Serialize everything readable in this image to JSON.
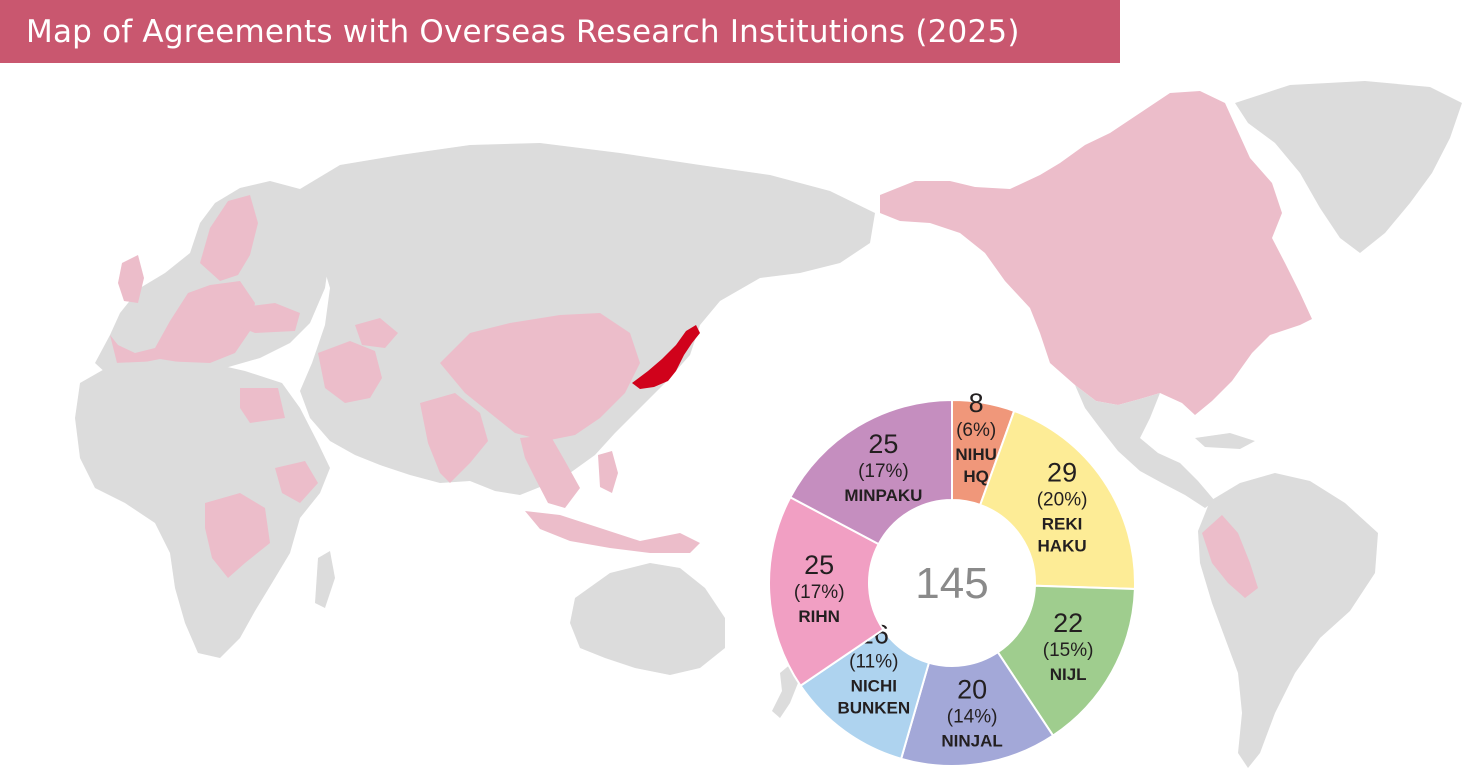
{
  "title": "Map of Agreements with Overseas Research Institutions (2025)",
  "colors": {
    "title_bg": "#c9576f",
    "land": "#dcdcdc",
    "partner": "#ecbdca",
    "japan": "#d0021b"
  },
  "chart_data": {
    "type": "pie",
    "donut": true,
    "total": "145",
    "slices": [
      {
        "value": 8,
        "value_label": "8",
        "pct_label": "(6%)",
        "label_lines": [
          "NIHU",
          "HQ"
        ],
        "color": "#f0977a"
      },
      {
        "value": 29,
        "value_label": "29",
        "pct_label": "(20%)",
        "label_lines": [
          "REKI",
          "HAKU"
        ],
        "color": "#fdec96"
      },
      {
        "value": 22,
        "value_label": "22",
        "pct_label": "(15%)",
        "label_lines": [
          "NIJL"
        ],
        "color": "#9fcd8e"
      },
      {
        "value": 20,
        "value_label": "20",
        "pct_label": "(14%)",
        "label_lines": [
          "NINJAL"
        ],
        "color": "#a3a8d8"
      },
      {
        "value": 16,
        "value_label": "16",
        "pct_label": "(11%)",
        "label_lines": [
          "NICHI",
          "BUNKEN"
        ],
        "color": "#aed3ef"
      },
      {
        "value": 25,
        "value_label": "25",
        "pct_label": "(17%)",
        "label_lines": [
          "RIHN"
        ],
        "color": "#f19fc3"
      },
      {
        "value": 25,
        "value_label": "25",
        "pct_label": "(17%)",
        "label_lines": [
          "MINPAKU"
        ],
        "color": "#c58ebf"
      }
    ]
  }
}
